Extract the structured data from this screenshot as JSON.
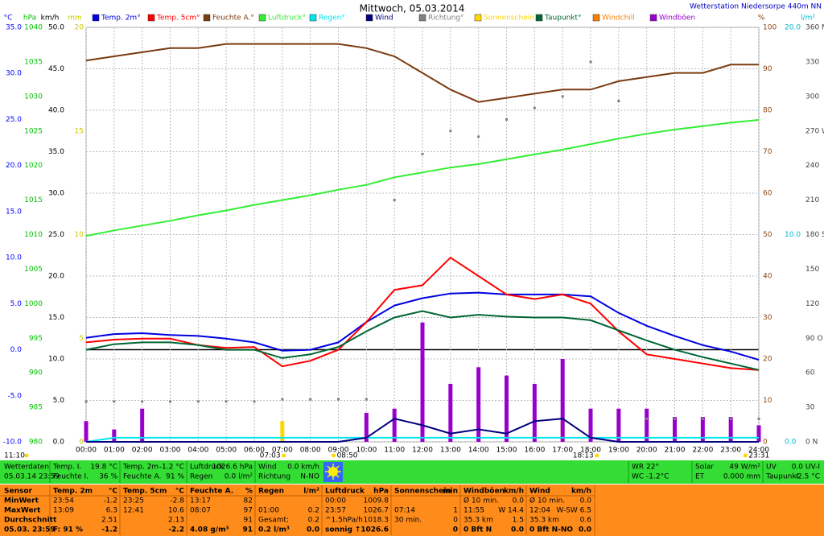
{
  "chart_data": {
    "type": "line",
    "title": "Mittwoch, 05.03.2014",
    "subtitle": "Wetterstation Niedersorpe 440m NN",
    "x": [
      0,
      1,
      2,
      3,
      4,
      5,
      6,
      7,
      8,
      9,
      10,
      11,
      12,
      13,
      14,
      15,
      16,
      17,
      18,
      19,
      20,
      21,
      22,
      23,
      24
    ],
    "xlim": [
      0,
      24
    ],
    "xticks": [
      {
        "value": 0,
        "label": "00:00"
      },
      {
        "value": 1,
        "label": "01:00"
      },
      {
        "value": 2,
        "label": "02:00"
      },
      {
        "value": 3,
        "label": "03:00"
      },
      {
        "value": 4,
        "label": "04:00"
      },
      {
        "value": 5,
        "label": "05:00"
      },
      {
        "value": 6,
        "label": "06:00"
      },
      {
        "value": 7,
        "label": "07:00"
      },
      {
        "value": 8,
        "label": "08:00"
      },
      {
        "value": 9,
        "label": "09:00"
      },
      {
        "value": 10,
        "label": "10:00"
      },
      {
        "value": 11,
        "label": "11:00"
      },
      {
        "value": 12,
        "label": "12:00"
      },
      {
        "value": 13,
        "label": "13:00"
      },
      {
        "value": 14,
        "label": "14:00"
      },
      {
        "value": 15,
        "label": "15:00"
      },
      {
        "value": 16,
        "label": "16:00"
      },
      {
        "value": 17,
        "label": "17:00"
      },
      {
        "value": 18,
        "label": "18:00"
      },
      {
        "value": 19,
        "label": "19:00"
      },
      {
        "value": 20,
        "label": "20:00"
      },
      {
        "value": 21,
        "label": "21:00"
      },
      {
        "value": 22,
        "label": "22:00"
      },
      {
        "value": 23,
        "label": "23:00"
      },
      {
        "value": 24,
        "label": "24:00"
      }
    ],
    "grid": true,
    "axes": [
      {
        "unit": "°C",
        "color": "#0000ff",
        "ylim": [
          -10,
          35
        ],
        "yticks": [
          {
            "value": 35,
            "label": "35.0"
          },
          {
            "value": 30,
            "label": "30.0"
          },
          {
            "value": 25,
            "label": "25.0"
          },
          {
            "value": 20,
            "label": "20.0"
          },
          {
            "value": 15,
            "label": "15.0"
          },
          {
            "value": 10,
            "label": "10.0"
          },
          {
            "value": 5,
            "label": "5.0"
          },
          {
            "value": 0,
            "label": "0.0"
          },
          {
            "value": -5,
            "label": "-5.0"
          },
          {
            "value": -10,
            "label": "-10.0"
          }
        ]
      },
      {
        "unit": "hPa",
        "color": "#00c000",
        "ylim": [
          980,
          1040
        ],
        "yticks": [
          1040,
          1035,
          1030,
          1025,
          1020,
          1015,
          1010,
          1005,
          1000,
          995,
          990,
          985,
          980
        ]
      },
      {
        "unit": "km/h",
        "color": "#000000",
        "ylim": [
          0,
          50
        ],
        "yticks": [
          {
            "value": 50,
            "label": "50.0"
          },
          {
            "value": 45,
            "label": "45.0"
          },
          {
            "value": 40,
            "label": "40.0"
          },
          {
            "value": 35,
            "label": "35.0"
          },
          {
            "value": 30,
            "label": "30.0"
          },
          {
            "value": 25,
            "label": "25.0"
          },
          {
            "value": 20,
            "label": "20.0"
          },
          {
            "value": 15,
            "label": "15.0"
          },
          {
            "value": 10,
            "label": "10.0"
          },
          {
            "value": 5,
            "label": "5.0"
          },
          {
            "value": 0,
            "label": "0.0"
          }
        ]
      },
      {
        "unit": "mm",
        "color": "#c8c800",
        "ylim": [
          0,
          20
        ],
        "yticks": [
          20,
          15,
          10,
          5,
          0
        ]
      },
      {
        "unit": "%",
        "color": "#8b4513",
        "ylim": [
          0,
          100
        ],
        "yticks": [
          100,
          90,
          80,
          70,
          60,
          50,
          40,
          30,
          20,
          10,
          0
        ]
      },
      {
        "unit": "l/m²",
        "color": "#00b8d0",
        "ylim": [
          0,
          20
        ],
        "yticks": [
          {
            "value": 20,
            "label": "20.0"
          },
          {
            "value": 10,
            "label": "10.0"
          },
          {
            "value": 0,
            "label": "0.0"
          }
        ]
      },
      {
        "ylim": [
          0,
          360
        ],
        "color": "#444444",
        "yticks": [
          {
            "value": 360,
            "label": "360 N"
          },
          330,
          300,
          {
            "value": 270,
            "label": "270 W"
          },
          240,
          210,
          {
            "value": 180,
            "label": "180 S"
          },
          150,
          120,
          {
            "value": 90,
            "label": "90 O"
          },
          60,
          30,
          {
            "value": 0,
            "label": "0 N"
          }
        ]
      }
    ],
    "series": [
      {
        "name": "Temp. 2m°",
        "color": "#0000e0",
        "axis": 0,
        "style": "line",
        "values": [
          1.3,
          1.7,
          1.8,
          1.6,
          1.5,
          1.2,
          0.8,
          -0.1,
          0.0,
          0.8,
          3.0,
          4.8,
          5.6,
          6.1,
          6.2,
          6.0,
          6.0,
          6.0,
          5.8,
          4.0,
          2.6,
          1.5,
          0.5,
          -0.2,
          -1.1
        ]
      },
      {
        "name": "Temp. 5cm°",
        "color": "#ff0000",
        "axis": 0,
        "style": "line",
        "values": [
          0.8,
          1.1,
          1.2,
          1.2,
          0.5,
          0.2,
          0.3,
          -1.8,
          -1.2,
          0.0,
          3.0,
          6.5,
          7.0,
          10.0,
          8.0,
          6.0,
          5.5,
          6.0,
          5.0,
          2.0,
          -0.5,
          -1.0,
          -1.5,
          -2.0,
          -2.2
        ]
      },
      {
        "name": "Feuchte A.°",
        "color": "#7a3b10",
        "axis": 4,
        "style": "line",
        "values": [
          92,
          93,
          94,
          95,
          95,
          96,
          96,
          96,
          96,
          96,
          95,
          93,
          89,
          85,
          82,
          83,
          84,
          85,
          85,
          87,
          88,
          89,
          89,
          91,
          91
        ]
      },
      {
        "name": "Luftdruck°",
        "color": "#33ee33",
        "axis": 1,
        "style": "line",
        "values": [
          1009.8,
          1010.6,
          1011.3,
          1012,
          1012.8,
          1013.5,
          1014.3,
          1015,
          1015.7,
          1016.5,
          1017.2,
          1018.3,
          1019,
          1019.7,
          1020.2,
          1020.9,
          1021.6,
          1022.3,
          1023.1,
          1023.9,
          1024.6,
          1025.2,
          1025.7,
          1026.2,
          1026.6
        ]
      },
      {
        "name": "Regen°",
        "color": "#00e5ee",
        "axis": 5,
        "style": "line",
        "values": [
          0,
          0.2,
          0.2,
          0.2,
          0.2,
          0.2,
          0.2,
          0.2,
          0.2,
          0.2,
          0.2,
          0.2,
          0.2,
          0.2,
          0.2,
          0.2,
          0.2,
          0.2,
          0.2,
          0.2,
          0.2,
          0.2,
          0.2,
          0.2,
          0.2
        ]
      },
      {
        "name": "Wind",
        "color": "#000080",
        "axis": 2,
        "style": "line",
        "values": [
          0,
          0,
          0,
          0,
          0,
          0,
          0,
          0,
          0,
          0,
          0.5,
          2.8,
          2.0,
          1.0,
          1.5,
          1.0,
          2.5,
          2.8,
          0.5,
          0,
          0,
          0,
          0,
          0,
          0
        ]
      },
      {
        "name": "Richtung°",
        "color": "#808080",
        "axis": 6,
        "style": "points",
        "values": [
          35,
          35,
          35,
          35,
          35,
          35,
          35,
          37,
          37,
          37,
          37,
          210,
          250,
          270,
          265,
          280,
          290,
          300,
          330,
          296,
          20,
          20,
          20,
          20,
          20
        ]
      },
      {
        "name": "Sonnenschein",
        "color": "#ffd700",
        "axis": 3,
        "style": "bar",
        "values": [
          null,
          null,
          null,
          null,
          null,
          null,
          null,
          1,
          null,
          null,
          null,
          null,
          null,
          null,
          null,
          null,
          null,
          1,
          null,
          null,
          null,
          null,
          null,
          null,
          null
        ]
      },
      {
        "name": "Taupunkt°",
        "color": "#006633",
        "axis": 0,
        "style": "line",
        "values": [
          0.0,
          0.6,
          0.8,
          0.8,
          0.5,
          0.0,
          0.0,
          -0.9,
          -0.5,
          0.3,
          2.0,
          3.5,
          4.2,
          3.5,
          3.8,
          3.6,
          3.5,
          3.5,
          3.2,
          2.1,
          1.0,
          0.0,
          -0.8,
          -1.5,
          -2.2
        ]
      },
      {
        "name": "Windchill",
        "color": "#ff8000",
        "style": "line"
      },
      {
        "name": "Windböen",
        "color": "#9900cc",
        "axis": 2,
        "style": "bar",
        "values": [
          2.5,
          1.5,
          4,
          0,
          0,
          0,
          0,
          0,
          0,
          0,
          3.5,
          4,
          14.4,
          7,
          9,
          8,
          7,
          10,
          4,
          4,
          4,
          3,
          3,
          3,
          2
        ]
      }
    ],
    "sun_markers": [
      {
        "label": "07:03",
        "x": 7.05
      },
      {
        "label": "08:50",
        "x": 8.83
      },
      {
        "label": "18:13",
        "x": 18.22
      },
      {
        "label": "23:31",
        "x": 23.52
      }
    ],
    "moon_label": "11:10"
  },
  "status_bar": {
    "columns": [
      [
        [
          "Wetterdaten",
          null
        ],
        [
          "05.03.14 23:59",
          null
        ]
      ],
      [
        [
          "Temp. I.",
          "19.8 °C"
        ],
        [
          "Feuchte I.",
          "36 %"
        ]
      ],
      [
        [
          "Temp. 2m",
          "-1.2 °C"
        ],
        [
          "Feuchte A.",
          "91 %"
        ]
      ],
      [
        [
          "Luftdruck",
          "1026.6 hPa"
        ],
        [
          "Regen",
          "0.0 l/m²"
        ]
      ],
      [
        [
          "Wind",
          "0.0 km/h"
        ],
        [
          "Richtung",
          "N-NO"
        ]
      ],
      [
        [
          "WR 22°",
          null
        ],
        [
          "WC -1.2°C",
          null
        ]
      ],
      [
        [
          "Solar",
          "49 W/m²"
        ],
        [
          "ET",
          "0.000 mm"
        ]
      ],
      [
        [
          "UV",
          "0.0 UV-I"
        ],
        [
          "Taupunkt",
          "-2.5 °C"
        ]
      ]
    ]
  },
  "stats_table": {
    "header": [
      [
        "Sensor",
        null
      ],
      [
        "Temp. 2m",
        "°C"
      ],
      [
        "Temp. 5cm",
        "°C"
      ],
      [
        "Feuchte A.",
        "%"
      ],
      [
        "Regen",
        "l/m²"
      ],
      [
        "Luftdruck",
        "hPa"
      ],
      [
        "Sonnenschein",
        "min"
      ],
      [
        "Windböen",
        "km/h"
      ],
      [
        "Wind",
        "km/h"
      ]
    ],
    "rows": [
      [
        [
          "MinWert",
          null
        ],
        [
          "23:54",
          "-1.2"
        ],
        [
          "23:25",
          "-2.8"
        ],
        [
          "13:17",
          "82"
        ],
        [
          null,
          null
        ],
        [
          "00:00",
          "1009.8"
        ],
        [
          null,
          null
        ],
        [
          "Ø 10 min.",
          "0.0"
        ],
        [
          "Ø 10 min.",
          "0.0"
        ]
      ],
      [
        [
          "MaxWert",
          null
        ],
        [
          "13:09",
          "6.3"
        ],
        [
          "12:41",
          "10.6"
        ],
        [
          "08:07",
          "97"
        ],
        [
          "01:00",
          "0.2"
        ],
        [
          "23:57",
          "1026.7"
        ],
        [
          "07:14",
          "1"
        ],
        [
          "11:55",
          "W 14.4"
        ],
        [
          "12:04",
          "W-SW 6.5"
        ]
      ],
      [
        [
          "Durchschnitt",
          null
        ],
        [
          null,
          "2.51"
        ],
        [
          null,
          "2.13"
        ],
        [
          null,
          "91"
        ],
        [
          "Gesamt:",
          "0.2"
        ],
        [
          "^1.5hPa/h",
          "1018.3"
        ],
        [
          "30 min.",
          "0"
        ],
        [
          "35.3 km",
          "1.5"
        ],
        [
          "35.3 km",
          "0.6"
        ]
      ],
      [
        [
          "05.03. 23:59",
          null
        ],
        [
          "F: 91 %",
          "-1.2"
        ],
        [
          null,
          "-2.2"
        ],
        [
          "4.08 g/m³",
          "91"
        ],
        [
          "0.2 l/m³",
          "0.0"
        ],
        [
          "sonnig",
          "↑1026.6"
        ],
        [
          null,
          "0"
        ],
        [
          "0 Bft N",
          "0.0"
        ],
        [
          "0 Bft N-NO",
          "0.0"
        ]
      ]
    ]
  }
}
